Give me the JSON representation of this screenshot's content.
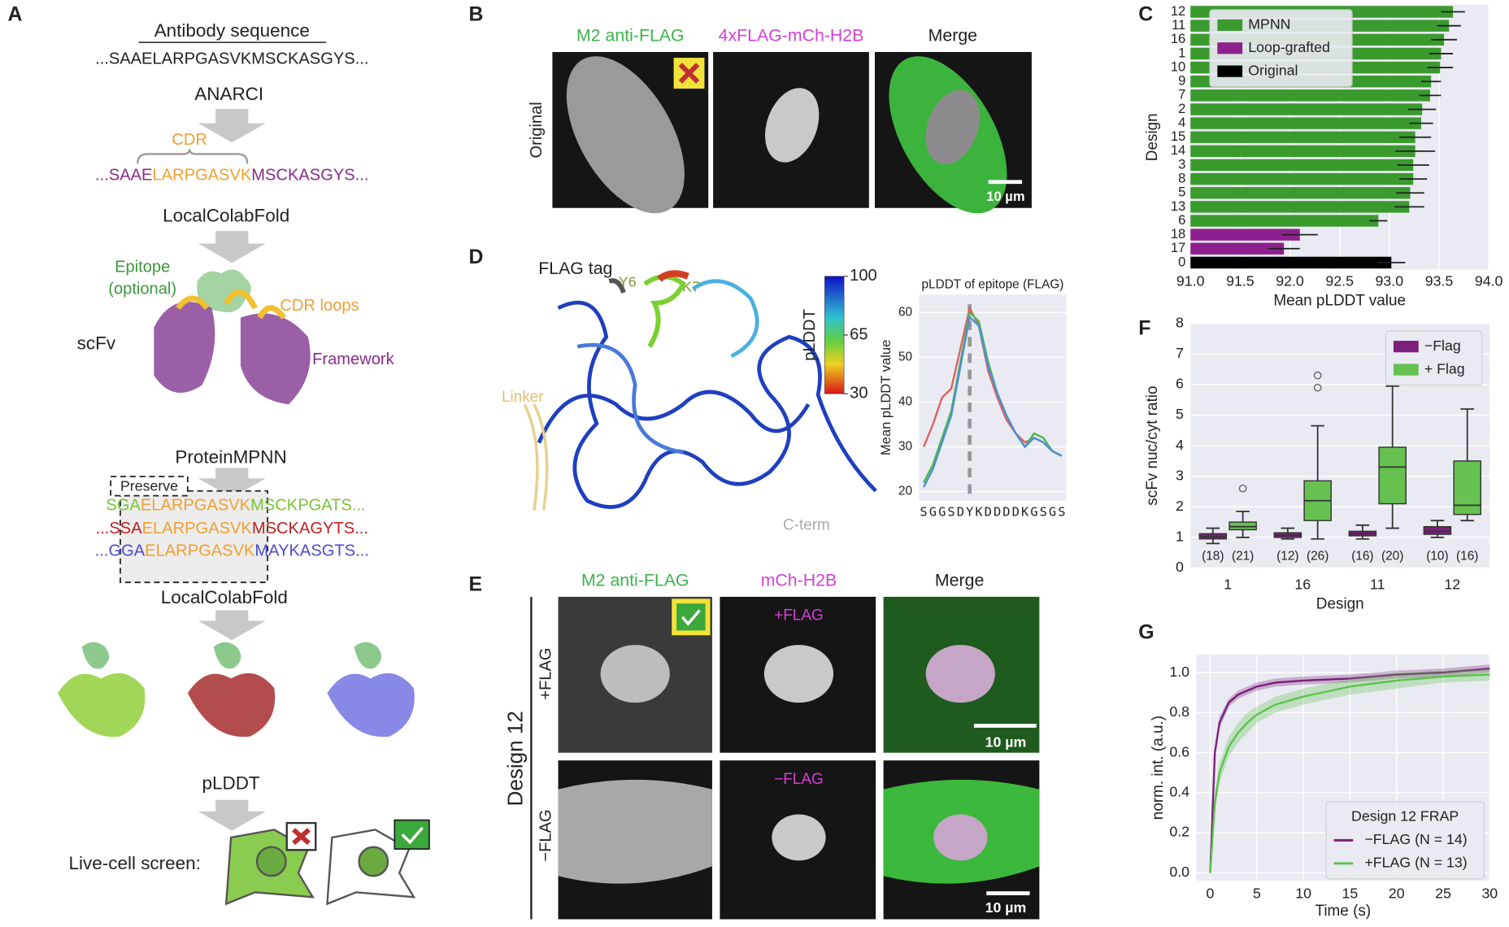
{
  "panel_labels": [
    "A",
    "B",
    "C",
    "D",
    "E",
    "F",
    "G"
  ],
  "panel_a": {
    "title": "Antibody sequence",
    "sequence": "...SAAELARPGASVKMSCKASGYS...",
    "step1": "ANARCI",
    "cdr_label": "CDR",
    "cdr_sequence": [
      "...SAAE",
      "LARPGASVK",
      "MSCKASGYS..."
    ],
    "step2": "LocalColabFold",
    "epitope": [
      "Epitope",
      "(optional)"
    ],
    "cdr_loops": "CDR loops",
    "scfv": "scFv",
    "framework": "Framework",
    "step3": "ProteinMPNN",
    "preserve": "Preserve",
    "designs": [
      [
        "SGA",
        "ELARPGASVK",
        "MSCKPGATS..."
      ],
      [
        "...SSA",
        "ELARPGASVK",
        "MSCKAGYTS..."
      ],
      [
        "...GGA",
        "ELARPGASVK",
        "MAYKASGTS..."
      ]
    ],
    "step4": "LocalColabFold",
    "step5": "pLDDT",
    "screen": "Live-cell screen:"
  },
  "panel_b": {
    "columns": [
      "M2 anti-FLAG",
      "4xFLAG-mCh-H2B",
      "Merge"
    ],
    "row": "Original",
    "scale_bar": "10 µm"
  },
  "panel_d": {
    "flag_tag": "FLAG tag",
    "y6": "Y6",
    "k7": "K7",
    "linker": "Linker",
    "c_term": "C-term"
  },
  "panel_e": {
    "columns": [
      "M2 anti-FLAG",
      "mCh-H2B",
      "Merge"
    ],
    "rows": [
      "+FLAG",
      "−FLAG"
    ],
    "design": "Design 12",
    "inset_labels": [
      "+FLAG",
      "−FLAG"
    ],
    "scale_bars": [
      "10 µm",
      "10 µm"
    ]
  },
  "chart_data": [
    {
      "type": "hbar",
      "categories": [
        "12",
        "11",
        "16",
        "1",
        "10",
        "9",
        "7",
        "2",
        "4",
        "15",
        "14",
        "3",
        "8",
        "5",
        "13",
        "6",
        "18",
        "17",
        "0"
      ],
      "series": [
        {
          "name": "MPNN",
          "color": "#3a9a2e",
          "values": [
            93.64,
            93.6,
            93.55,
            93.52,
            93.51,
            93.42,
            93.41,
            93.33,
            93.32,
            93.26,
            93.26,
            93.24,
            93.24,
            93.21,
            93.2,
            92.89,
            null,
            null,
            null
          ],
          "errors": [
            0.12,
            0.12,
            0.13,
            0.12,
            0.13,
            0.1,
            0.11,
            0.14,
            0.12,
            0.16,
            0.2,
            0.16,
            0.14,
            0.14,
            0.15,
            0.09,
            null,
            null,
            null
          ]
        },
        {
          "name": "Loop-grafted",
          "color": "#8e1f8e",
          "values": [
            null,
            null,
            null,
            null,
            null,
            null,
            null,
            null,
            null,
            null,
            null,
            null,
            null,
            null,
            null,
            null,
            92.1,
            91.94,
            null
          ],
          "errors": [
            null,
            null,
            null,
            null,
            null,
            null,
            null,
            null,
            null,
            null,
            null,
            null,
            null,
            null,
            null,
            null,
            0.18,
            0.16,
            null
          ]
        },
        {
          "name": "Original",
          "color": "#000000",
          "values": [
            null,
            null,
            null,
            null,
            null,
            null,
            null,
            null,
            null,
            null,
            null,
            null,
            null,
            null,
            null,
            null,
            null,
            null,
            93.02
          ],
          "errors": [
            null,
            null,
            null,
            null,
            null,
            null,
            null,
            null,
            null,
            null,
            null,
            null,
            null,
            null,
            null,
            null,
            null,
            null,
            0.14
          ]
        }
      ],
      "xlim": [
        91.0,
        94.0
      ],
      "xticks": [
        {
          "value": 91.0,
          "label": "91.0"
        },
        {
          "value": 91.5,
          "label": "91.5"
        },
        {
          "value": 92.0,
          "label": "92.0"
        },
        {
          "value": 92.5,
          "label": "92.5"
        },
        {
          "value": 93.0,
          "label": "93.0"
        },
        {
          "value": 93.5,
          "label": "93.5"
        },
        {
          "value": 94.0,
          "label": "94.0"
        }
      ],
      "xlabel": "Mean pLDDT value",
      "ylabel": "Design",
      "legend": "upper left",
      "grid": true
    },
    {
      "type": "line",
      "title": "pLDDT of epitope (FLAG)",
      "categories": [
        "S",
        "G",
        "G",
        "S",
        "D",
        "Y",
        "K",
        "D",
        "D",
        "D",
        "D",
        "K",
        "G",
        "S",
        "G",
        "S"
      ],
      "category_colors": [
        "#999999",
        "#999999",
        "#999999",
        "#999999",
        "#1f6e1f",
        "#1f6e1f",
        "#1f6e1f",
        "#1f6e1f",
        "#1f6e1f",
        "#1f6e1f",
        "#1f6e1f",
        "#1f6e1f",
        "#999999",
        "#999999",
        "#999999",
        "#999999"
      ],
      "series": [
        {
          "color": "#e06060",
          "values": [
            30,
            35,
            41,
            43,
            52,
            61,
            57,
            47,
            41,
            36,
            33,
            31,
            32,
            31,
            29,
            28
          ]
        },
        {
          "color": "#4cb84c",
          "values": [
            22,
            26,
            32,
            38,
            49,
            60,
            58,
            49,
            42,
            37,
            33,
            30,
            33,
            32,
            29,
            28
          ]
        },
        {
          "color": "#4d8fd6",
          "values": [
            21,
            25,
            31,
            37,
            48,
            59,
            57,
            48,
            42,
            37,
            33,
            30,
            32,
            31,
            29,
            28
          ]
        }
      ],
      "ylim": [
        18,
        64
      ],
      "yticks": [
        20,
        30,
        40,
        50,
        60
      ],
      "ylabel": "Mean pLDDT value",
      "grid": true,
      "colorbar": {
        "label": "pLDDT",
        "lim": [
          30,
          100
        ],
        "ticks": [
          100,
          65,
          30
        ]
      }
    },
    {
      "type": "box",
      "categories": [
        "1",
        "16",
        "11",
        "12"
      ],
      "series": [
        {
          "name": "−Flag",
          "color": "#7b1f7b",
          "q1": [
            0.95,
            1.0,
            1.05,
            1.1
          ],
          "median": [
            1.02,
            1.07,
            1.12,
            1.2
          ],
          "q3": [
            1.12,
            1.15,
            1.2,
            1.35
          ],
          "whislo": [
            0.8,
            0.95,
            0.95,
            1.0
          ],
          "whishi": [
            1.3,
            1.3,
            1.4,
            1.55
          ],
          "outliers": [
            [],
            [],
            [],
            []
          ],
          "n_labels": [
            "(18)",
            "(12)",
            "(16)",
            "(10)"
          ]
        },
        {
          "name": "+ Flag",
          "color": "#66c150",
          "q1": [
            1.25,
            1.55,
            2.1,
            1.75
          ],
          "median": [
            1.35,
            2.2,
            3.3,
            2.05
          ],
          "q3": [
            1.5,
            2.85,
            3.95,
            3.5
          ],
          "whislo": [
            1.0,
            0.95,
            1.3,
            1.55
          ],
          "whishi": [
            1.85,
            4.65,
            5.95,
            5.2
          ],
          "outliers": [
            [
              2.6
            ],
            [
              5.9,
              6.3
            ],
            [],
            []
          ],
          "n_labels": [
            "(21)",
            "(26)",
            "(20)",
            "(16)"
          ]
        }
      ],
      "ylim": [
        0,
        8
      ],
      "yticks": [
        0,
        1,
        2,
        3,
        4,
        5,
        6,
        7,
        8
      ],
      "xlabel": "Design",
      "ylabel": "scFv nuc/cyt ratio",
      "legend": "upper right",
      "grid": true
    },
    {
      "type": "line",
      "x": [
        0,
        0.5,
        1,
        2,
        3,
        4,
        5,
        7,
        10,
        15,
        20,
        25,
        30
      ],
      "series": [
        {
          "name": "−FLAG (N = 14)",
          "color": "#7b1f7b",
          "values": [
            0,
            0.6,
            0.75,
            0.85,
            0.89,
            0.91,
            0.93,
            0.95,
            0.96,
            0.97,
            0.99,
            1.0,
            1.02
          ],
          "errors": [
            0.02,
            0.03,
            0.03,
            0.02,
            0.02,
            0.02,
            0.02,
            0.02,
            0.02,
            0.02,
            0.02,
            0.02,
            0.02
          ]
        },
        {
          "name": "+FLAG (N = 13)",
          "color": "#5ac34a",
          "values": [
            0,
            0.35,
            0.5,
            0.63,
            0.7,
            0.75,
            0.79,
            0.84,
            0.88,
            0.93,
            0.96,
            0.98,
            0.99
          ],
          "errors": [
            0.03,
            0.05,
            0.05,
            0.05,
            0.05,
            0.05,
            0.04,
            0.04,
            0.04,
            0.04,
            0.04,
            0.03,
            0.03
          ]
        }
      ],
      "xlim": [
        -1.5,
        30
      ],
      "xticks": [
        0,
        5,
        10,
        15,
        20,
        25,
        30
      ],
      "ylim": [
        -0.04,
        1.09
      ],
      "yticks": [
        {
          "value": 0,
          "label": "0.0"
        },
        {
          "value": 0.2,
          "label": "0.2"
        },
        {
          "value": 0.4,
          "label": "0.4"
        },
        {
          "value": 0.6,
          "label": "0.6"
        },
        {
          "value": 0.8,
          "label": "0.8"
        },
        {
          "value": 1,
          "label": "1.0"
        }
      ],
      "xlabel": "Time (s)",
      "ylabel": "norm. int. (a.u.)",
      "legend_title": "Design 12 FRAP",
      "legend": "lower right",
      "grid": true
    }
  ]
}
